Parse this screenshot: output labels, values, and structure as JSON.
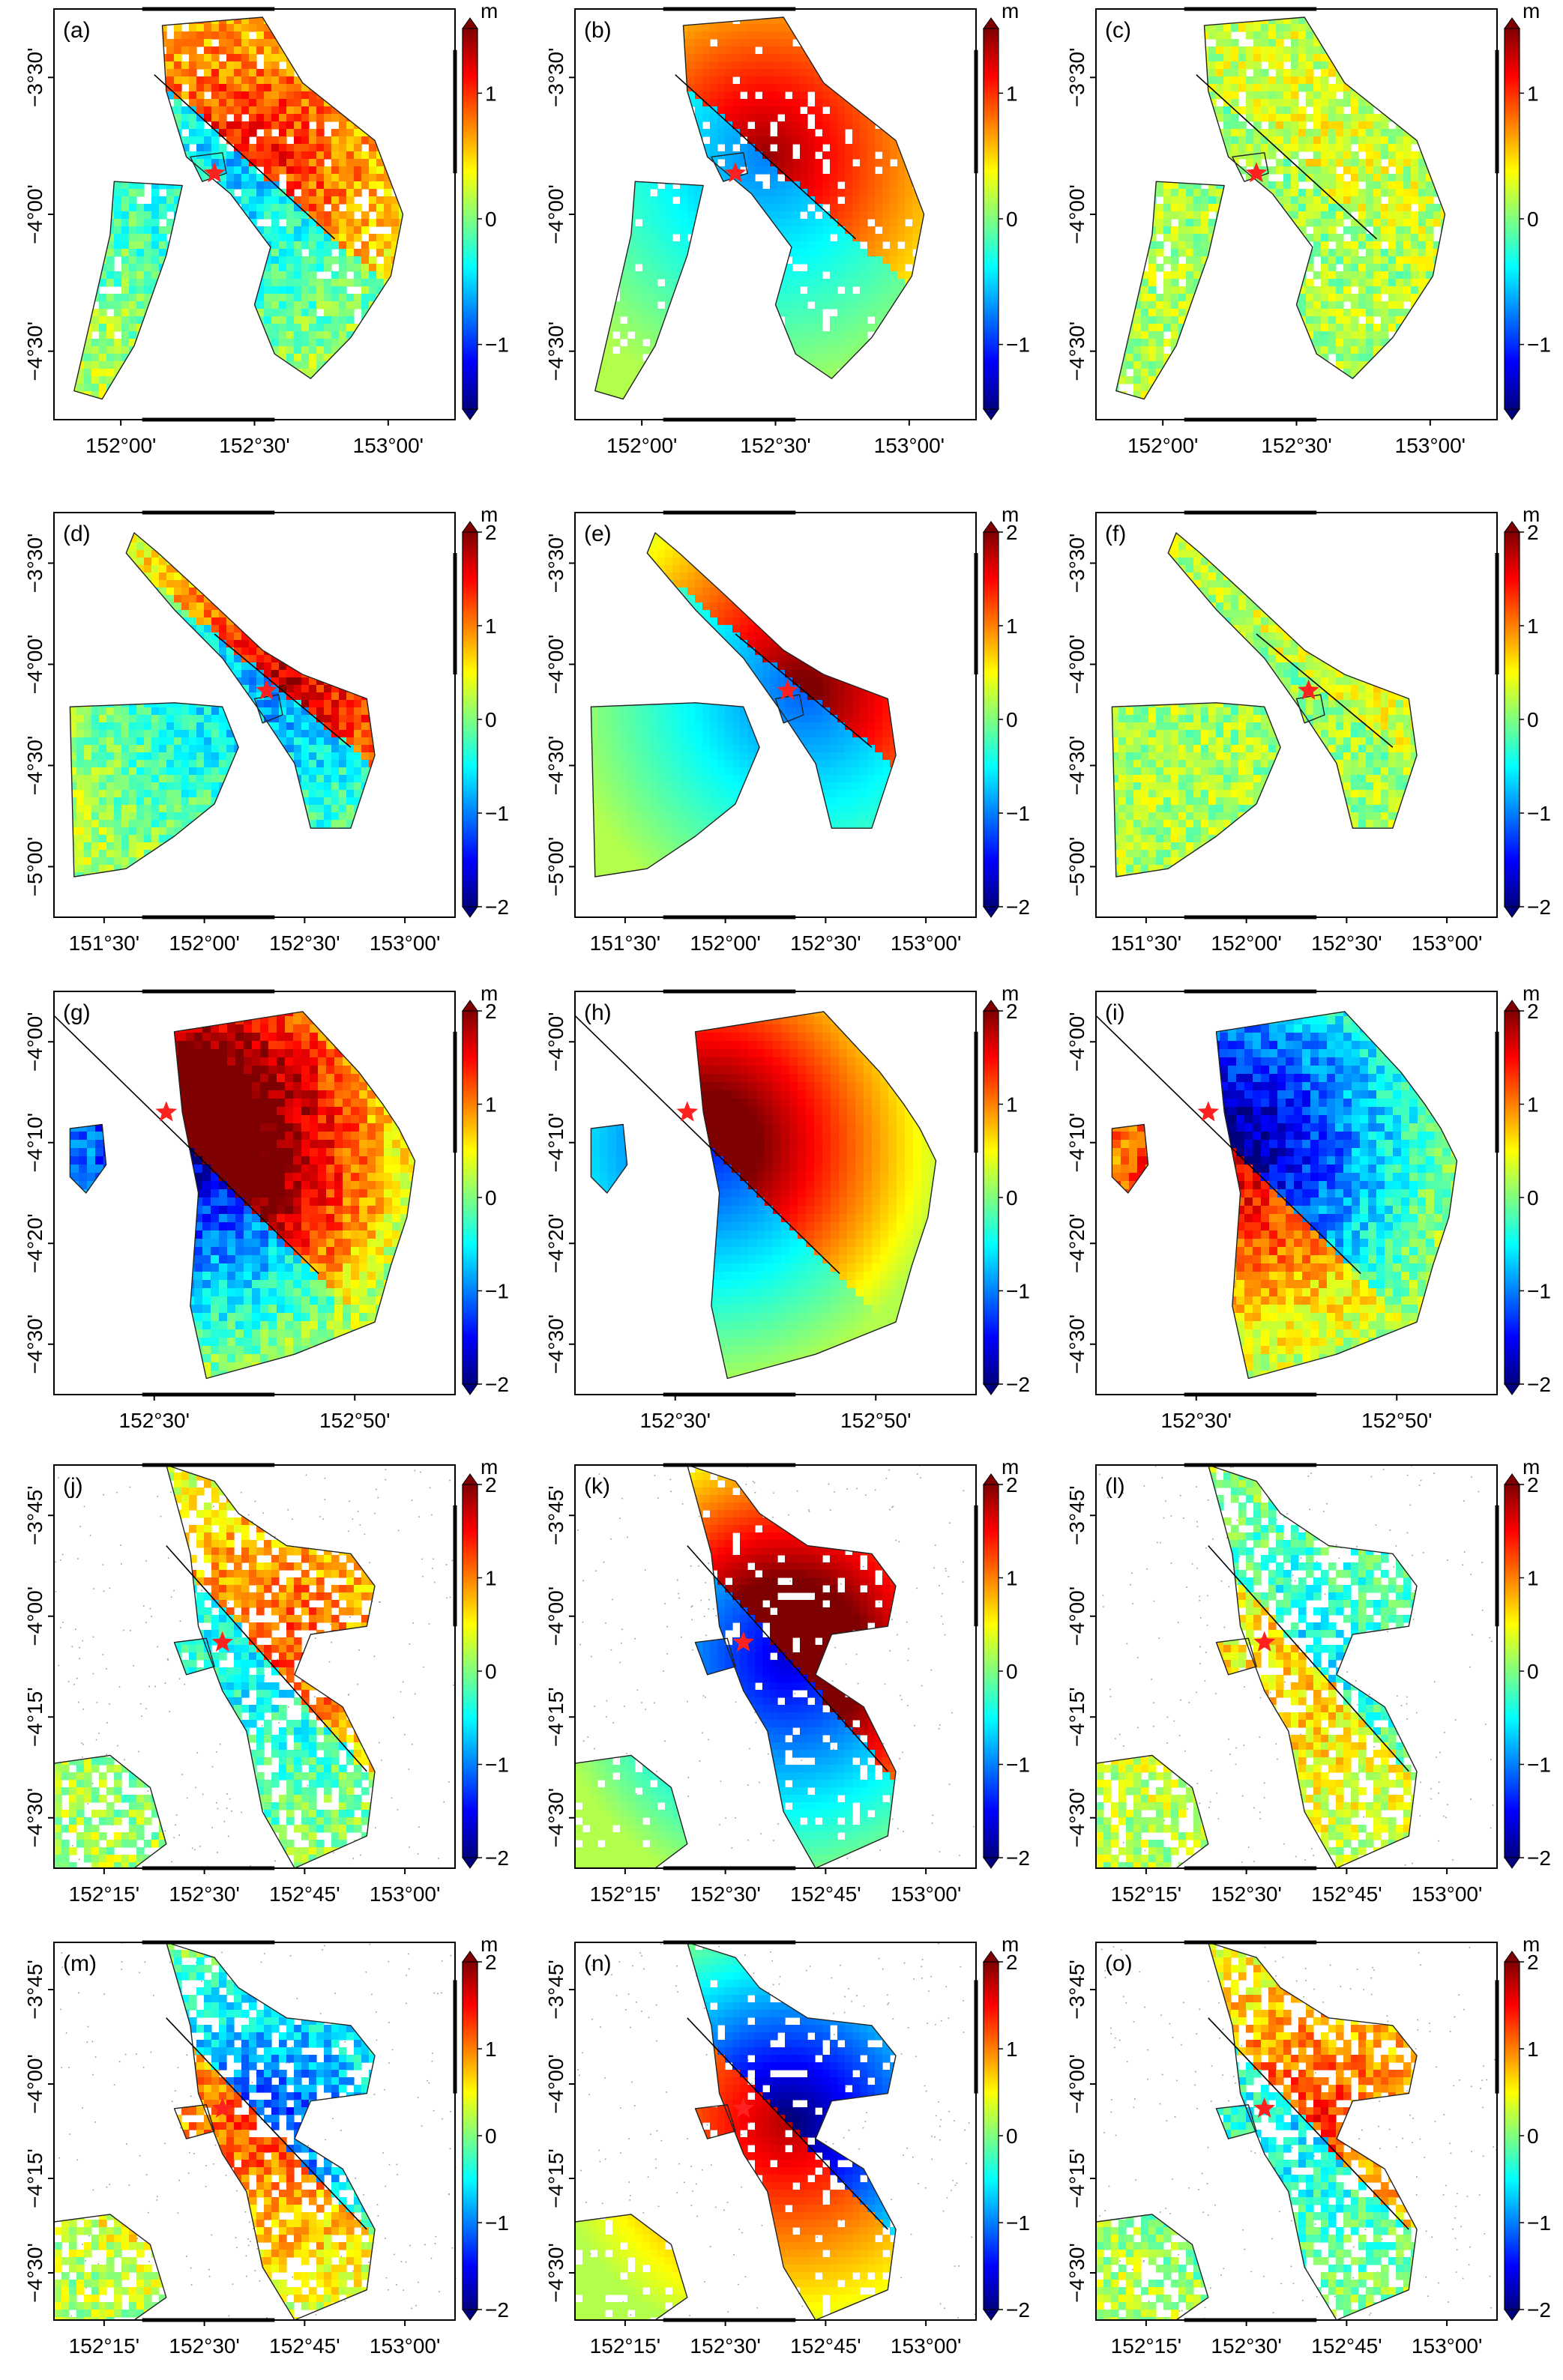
{
  "colorbar": {
    "unit": "m",
    "colors": [
      "#00007f",
      "#0000ff",
      "#007fff",
      "#00ffff",
      "#7fff7f",
      "#ffff00",
      "#ff7f00",
      "#ff0000",
      "#7f0000"
    ]
  },
  "marker": {
    "color": "#ff2020"
  },
  "rows": [
    {
      "id": "row1",
      "lon_ticks": [
        "152°00'",
        "152°30'",
        "153°00'"
      ],
      "lat_ticks": [
        "−3°30'",
        "−4°00'",
        "−4°30'"
      ],
      "cbar_ticks": [
        "1",
        "0",
        "−1"
      ]
    },
    {
      "id": "row2",
      "lon_ticks": [
        "151°30'",
        "152°00'",
        "152°30'",
        "153°00'"
      ],
      "lat_ticks": [
        "−3°30'",
        "−4°00'",
        "−4°30'",
        "−5°00'"
      ],
      "cbar_ticks": [
        "2",
        "1",
        "0",
        "−1",
        "−2"
      ]
    },
    {
      "id": "row3",
      "lon_ticks": [
        "152°30'",
        "152°50'"
      ],
      "lat_ticks": [
        "−4°00'",
        "−4°10'",
        "−4°20'",
        "−4°30'"
      ],
      "cbar_ticks": [
        "2",
        "1",
        "0",
        "−1",
        "−2"
      ]
    },
    {
      "id": "row4",
      "lon_ticks": [
        "152°15'",
        "152°30'",
        "152°45'",
        "153°00'"
      ],
      "lat_ticks": [
        "−3°45'",
        "−4°00'",
        "−4°15'",
        "−4°30'"
      ],
      "cbar_ticks": [
        "2",
        "1",
        "0",
        "−1",
        "−2"
      ]
    },
    {
      "id": "row5",
      "lon_ticks": [
        "152°15'",
        "152°30'",
        "152°45'",
        "153°00'"
      ],
      "lat_ticks": [
        "−3°45'",
        "−4°00'",
        "−4°15'",
        "−4°30'"
      ],
      "cbar_ticks": [
        "2",
        "1",
        "0",
        "−1",
        "−2"
      ]
    }
  ],
  "panels": [
    {
      "label": "(a)",
      "row": 0,
      "col": 0,
      "style": "A",
      "bias": 0.35
    },
    {
      "label": "(b)",
      "row": 0,
      "col": 1,
      "style": "A",
      "bias": 0.45
    },
    {
      "label": "(c)",
      "row": 0,
      "col": 2,
      "style": "A",
      "bias": 0.05
    },
    {
      "label": "(d)",
      "row": 1,
      "col": 0,
      "style": "B",
      "bias": 0.4
    },
    {
      "label": "(e)",
      "row": 1,
      "col": 1,
      "style": "B",
      "bias": 0.5
    },
    {
      "label": "(f)",
      "row": 1,
      "col": 2,
      "style": "B",
      "bias": 0.05
    },
    {
      "label": "(g)",
      "row": 2,
      "col": 0,
      "style": "C",
      "bias": 0.8
    },
    {
      "label": "(h)",
      "row": 2,
      "col": 1,
      "style": "C",
      "bias": 0.6
    },
    {
      "label": "(i)",
      "row": 2,
      "col": 2,
      "style": "C",
      "bias": -0.6
    },
    {
      "label": "(j)",
      "row": 3,
      "col": 0,
      "style": "D",
      "bias": 0.3
    },
    {
      "label": "(k)",
      "row": 3,
      "col": 1,
      "style": "D",
      "bias": 0.7
    },
    {
      "label": "(l)",
      "row": 3,
      "col": 2,
      "style": "D",
      "bias": -0.2
    },
    {
      "label": "(m)",
      "row": 4,
      "col": 0,
      "style": "D",
      "bias": -0.4
    },
    {
      "label": "(n)",
      "row": 4,
      "col": 1,
      "style": "D",
      "bias": -0.6
    },
    {
      "label": "(o)",
      "row": 4,
      "col": 2,
      "style": "D",
      "bias": 0.3
    }
  ]
}
